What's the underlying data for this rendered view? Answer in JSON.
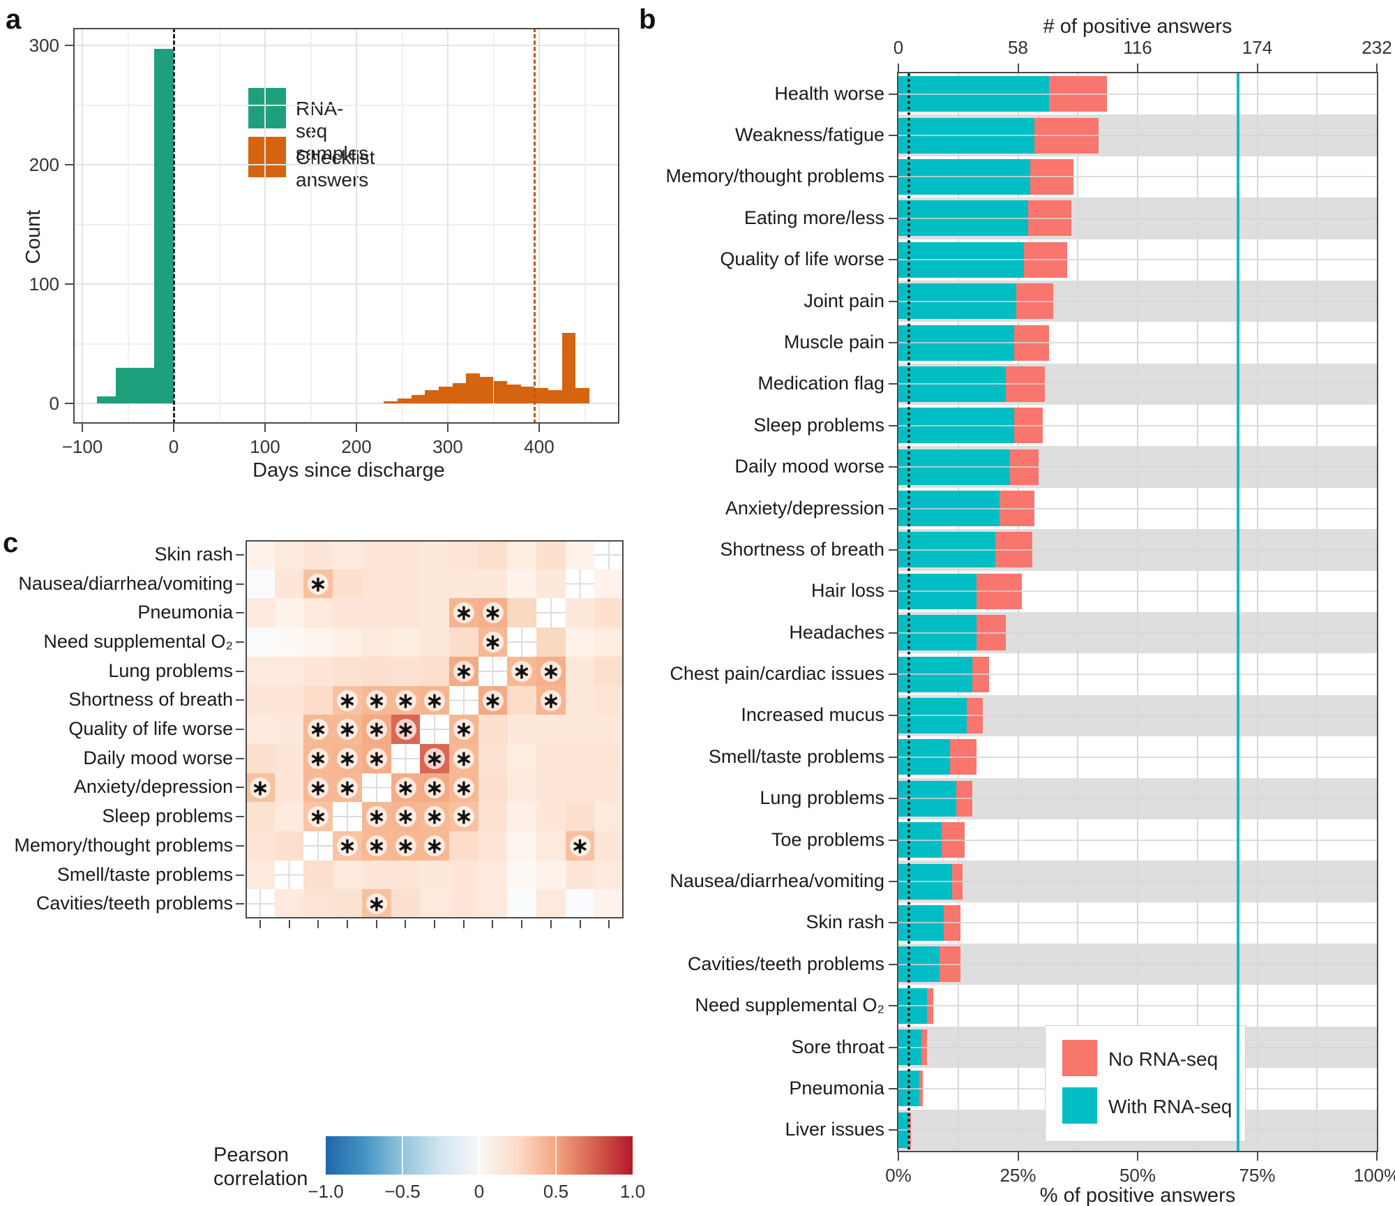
{
  "figure": {
    "panels": {
      "a": "a",
      "b": "b",
      "c": "c"
    }
  },
  "chart_data": [
    {
      "panel": "a",
      "type": "histogram",
      "xlabel": "Days since discharge",
      "ylabel": "Count",
      "x_ticks": [
        "−100",
        "0",
        "100",
        "200",
        "300",
        "400"
      ],
      "x_tick_values": [
        -100,
        0,
        100,
        200,
        300,
        400
      ],
      "y_ticks": [
        "0",
        "100",
        "200",
        "300"
      ],
      "y_tick_values": [
        0,
        100,
        200,
        300
      ],
      "x_range": [
        -110,
        488
      ],
      "y_range": [
        0,
        314
      ],
      "grid": "on",
      "legend": [
        {
          "label": "RNA-seq samples",
          "color": "#1fa07c"
        },
        {
          "label": "Checklist answers",
          "color": "#d4640f"
        }
      ],
      "series": [
        {
          "name": "RNA-seq samples",
          "color": "#1fa07c",
          "bin_width_days": 21,
          "bins": [
            {
              "start": -84,
              "count": 6
            },
            {
              "start": -63,
              "count": 30
            },
            {
              "start": -42,
              "count": 30
            },
            {
              "start": -21,
              "count": 297
            }
          ]
        },
        {
          "name": "Checklist answers",
          "color": "#d4640f",
          "bin_width_days": 15,
          "bins": [
            {
              "start": 230,
              "count": 2
            },
            {
              "start": 245,
              "count": 4
            },
            {
              "start": 260,
              "count": 7
            },
            {
              "start": 275,
              "count": 11
            },
            {
              "start": 290,
              "count": 14
            },
            {
              "start": 305,
              "count": 17
            },
            {
              "start": 320,
              "count": 25
            },
            {
              "start": 335,
              "count": 22
            },
            {
              "start": 350,
              "count": 19
            },
            {
              "start": 365,
              "count": 16
            },
            {
              "start": 380,
              "count": 14
            },
            {
              "start": 395,
              "count": 13
            },
            {
              "start": 410,
              "count": 11
            },
            {
              "start": 425,
              "count": 59
            },
            {
              "start": 440,
              "count": 13
            }
          ]
        }
      ],
      "vlines": [
        {
          "x": 0,
          "color": "#222222",
          "style": "dashed"
        },
        {
          "x": 395,
          "color": "#c4590d",
          "style": "dashed"
        }
      ]
    },
    {
      "panel": "b",
      "type": "stacked-bar-horizontal",
      "top_axis_title": "# of positive answers",
      "bottom_axis_title": "% of positive answers",
      "top_ticks": [
        "0",
        "58",
        "116",
        "174",
        "232"
      ],
      "top_tick_values": [
        0,
        58,
        116,
        174,
        232
      ],
      "bottom_ticks": [
        "0%",
        "25%",
        "50%",
        "75%",
        "100%"
      ],
      "total_n": 232,
      "legend": [
        {
          "label": "No RNA-seq",
          "color": "#f8766d"
        },
        {
          "label": "With RNA-seq",
          "color": "#00bec4"
        }
      ],
      "reference_lines": [
        {
          "value_pct": 2.2,
          "style": "dotted",
          "color": "#111111"
        },
        {
          "value_pct": 71,
          "style": "solid",
          "color": "#17b8c5"
        }
      ],
      "categories": [
        "Health worse",
        "Weakness/fatigue",
        "Memory/thought problems",
        "Eating more/less",
        "Quality of life worse",
        "Joint pain",
        "Muscle pain",
        "Medication flag",
        "Sleep problems",
        "Daily mood worse",
        "Anxiety/depression",
        "Shortness of breath",
        "Hair loss",
        "Headaches",
        "Chest pain/cardiac issues",
        "Increased mucus",
        "Smell/taste problems",
        "Lung problems",
        "Toe problems",
        "Nausea/diarrhea/vomiting",
        "Skin rash",
        "Cavities/teeth problems",
        "Need supplemental O₂",
        "Sore throat",
        "Pneumonia",
        "Liver issues"
      ],
      "series": [
        {
          "name": "With RNA-seq",
          "color": "#00bec4",
          "values": [
            73,
            66,
            64,
            63,
            61,
            57,
            56,
            52,
            56,
            54,
            49,
            47,
            38,
            38,
            36,
            33,
            25,
            28,
            21,
            26,
            22,
            20,
            14,
            11,
            10,
            5
          ]
        },
        {
          "name": "No RNA-seq",
          "color": "#f8766d",
          "values": [
            28,
            31,
            21,
            21,
            21,
            18,
            17,
            19,
            14,
            14,
            17,
            18,
            22,
            14,
            8,
            8,
            13,
            8,
            11,
            5,
            8,
            10,
            3,
            3,
            2,
            1
          ]
        }
      ]
    },
    {
      "panel": "c",
      "type": "heatmap",
      "colorbar_title": "Pearson correlation",
      "colorbar_ticks": [
        "−1.0",
        "−0.5",
        "0",
        "0.5",
        "1.0"
      ],
      "colorbar_range": [
        -1,
        1
      ],
      "x_labels": [
        "Cavities/teeth problems",
        "Smell/taste problems",
        "Memory/thought problems",
        "Sleep problems",
        "Anxiety/depression",
        "Daily mood worse",
        "Quality of life worse",
        "Shortness of breath",
        "Lung problems",
        "Need supplemental O₂",
        "Pneumonia",
        "Nausea/diarrhea/vomiting",
        "Skin rash"
      ],
      "y_labels": [
        "Skin rash",
        "Nausea/diarrhea/vomiting",
        "Pneumonia",
        "Need supplemental O₂",
        "Lung problems",
        "Shortness of breath",
        "Quality of life worse",
        "Daily mood worse",
        "Anxiety/depression",
        "Sleep problems",
        "Memory/thought problems",
        "Smell/taste problems",
        "Cavities/teeth problems"
      ],
      "values": [
        [
          0.06,
          0.1,
          0.12,
          0.1,
          0.12,
          0.13,
          0.11,
          0.13,
          0.16,
          0.09,
          0.15,
          0.06,
          null
        ],
        [
          -0.04,
          0.12,
          0.28,
          0.16,
          0.13,
          0.13,
          0.11,
          0.11,
          0.11,
          0.06,
          0.11,
          null,
          0.06
        ],
        [
          0.1,
          0.06,
          0.1,
          0.12,
          0.12,
          0.13,
          0.11,
          0.32,
          0.34,
          0.2,
          null,
          0.11,
          0.15
        ],
        [
          -0.04,
          0.03,
          0.05,
          0.07,
          0.1,
          0.09,
          0.11,
          0.17,
          0.31,
          null,
          0.2,
          0.06,
          0.09
        ],
        [
          0.1,
          0.1,
          0.12,
          0.14,
          0.16,
          0.14,
          0.16,
          0.36,
          null,
          0.31,
          0.34,
          0.11,
          0.16
        ],
        [
          0.12,
          0.12,
          0.17,
          0.28,
          0.31,
          0.31,
          0.32,
          null,
          0.36,
          0.17,
          0.32,
          0.11,
          0.13
        ],
        [
          0.1,
          0.11,
          0.31,
          0.31,
          0.36,
          0.56,
          null,
          0.32,
          0.16,
          0.11,
          0.11,
          0.11,
          0.11
        ],
        [
          0.15,
          0.13,
          0.31,
          0.32,
          0.35,
          null,
          0.56,
          0.31,
          0.14,
          0.09,
          0.13,
          0.13,
          0.13
        ],
        [
          0.28,
          0.12,
          0.31,
          0.31,
          null,
          0.35,
          0.36,
          0.31,
          0.16,
          0.1,
          0.12,
          0.13,
          0.12
        ],
        [
          0.14,
          0.1,
          0.27,
          null,
          0.31,
          0.32,
          0.31,
          0.28,
          0.14,
          0.07,
          0.12,
          0.16,
          0.1
        ],
        [
          0.13,
          0.16,
          null,
          0.27,
          0.31,
          0.31,
          0.31,
          0.17,
          0.12,
          0.05,
          0.1,
          0.28,
          0.12
        ],
        [
          0.1,
          null,
          0.16,
          0.1,
          0.12,
          0.13,
          0.11,
          0.12,
          0.1,
          0.03,
          0.06,
          0.12,
          0.1
        ],
        [
          null,
          0.1,
          0.13,
          0.14,
          0.28,
          0.15,
          0.1,
          0.12,
          0.1,
          -0.04,
          0.1,
          -0.04,
          0.06
        ]
      ],
      "stars": [
        [
          1,
          2
        ],
        [
          2,
          7
        ],
        [
          2,
          8
        ],
        [
          3,
          8
        ],
        [
          4,
          7
        ],
        [
          4,
          9
        ],
        [
          4,
          10
        ],
        [
          5,
          3
        ],
        [
          5,
          4
        ],
        [
          5,
          5
        ],
        [
          5,
          6
        ],
        [
          5,
          8
        ],
        [
          5,
          10
        ],
        [
          6,
          2
        ],
        [
          6,
          3
        ],
        [
          6,
          4
        ],
        [
          6,
          5
        ],
        [
          6,
          7
        ],
        [
          7,
          2
        ],
        [
          7,
          3
        ],
        [
          7,
          4
        ],
        [
          7,
          6
        ],
        [
          7,
          7
        ],
        [
          8,
          0
        ],
        [
          8,
          2
        ],
        [
          8,
          3
        ],
        [
          8,
          5
        ],
        [
          8,
          6
        ],
        [
          8,
          7
        ],
        [
          9,
          2
        ],
        [
          9,
          4
        ],
        [
          9,
          5
        ],
        [
          9,
          6
        ],
        [
          9,
          7
        ],
        [
          10,
          3
        ],
        [
          10,
          4
        ],
        [
          10,
          5
        ],
        [
          10,
          6
        ],
        [
          10,
          11
        ],
        [
          12,
          4
        ]
      ]
    }
  ]
}
